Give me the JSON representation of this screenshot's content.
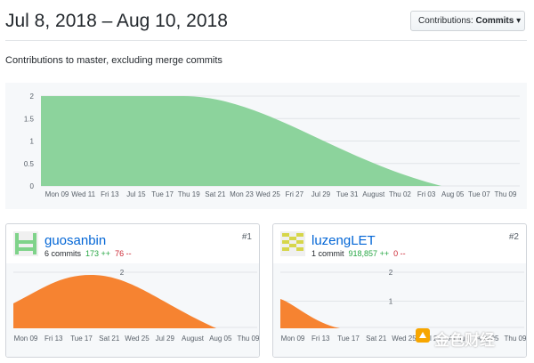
{
  "header": {
    "title": "Jul 8, 2018 – Aug 10, 2018",
    "dropdown_prefix": "Contributions: ",
    "dropdown_value": "Commits",
    "dropdown_caret": "▾"
  },
  "subtitle": "Contributions to master, excluding merge commits",
  "main_chart": {
    "type": "area",
    "color": "#8cd39c",
    "y_ticks": [
      "2",
      "1.5",
      "1",
      "0.5",
      "0"
    ],
    "x_ticks": [
      "Mon 09",
      "Wed 11",
      "Fri 13",
      "Jul 15",
      "Tue 17",
      "Thu 19",
      "Sat 21",
      "Mon 23",
      "Wed 25",
      "Fri 27",
      "Jul 29",
      "Tue 31",
      "August",
      "Thu 02",
      "Fri 03",
      "Aug 05",
      "Tue 07",
      "Thu 09"
    ],
    "ylim": [
      0,
      2
    ]
  },
  "contributors": [
    {
      "name": "guosanbin",
      "commits": "6 commits",
      "additions": "173 ++",
      "deletions": "76 --",
      "rank": "#1",
      "avatar_color": "#7fd38a",
      "y_ticks": [
        "2"
      ],
      "x_ticks": [
        "Mon 09",
        "Fri 13",
        "Tue 17",
        "Sat 21",
        "Wed 25",
        "Jul 29",
        "August",
        "Aug 05",
        "Thu 09"
      ]
    },
    {
      "name": "luzengLET",
      "commits": "1 commit",
      "additions": "918,857 ++",
      "deletions": "0 --",
      "rank": "#2",
      "avatar_color": "#d6d64a",
      "y_ticks": [
        "2",
        "1"
      ],
      "x_ticks": [
        "Mon 09",
        "Fri 13",
        "Tue 17",
        "Sat 21",
        "Wed 25",
        "Jul 29",
        "August",
        "Aug 05",
        "Thu 09"
      ]
    }
  ],
  "watermark": "金色财经",
  "colors": {
    "contributor_area": "#f68331",
    "link": "#0366d6",
    "add": "#28a745",
    "del": "#cb2431"
  }
}
